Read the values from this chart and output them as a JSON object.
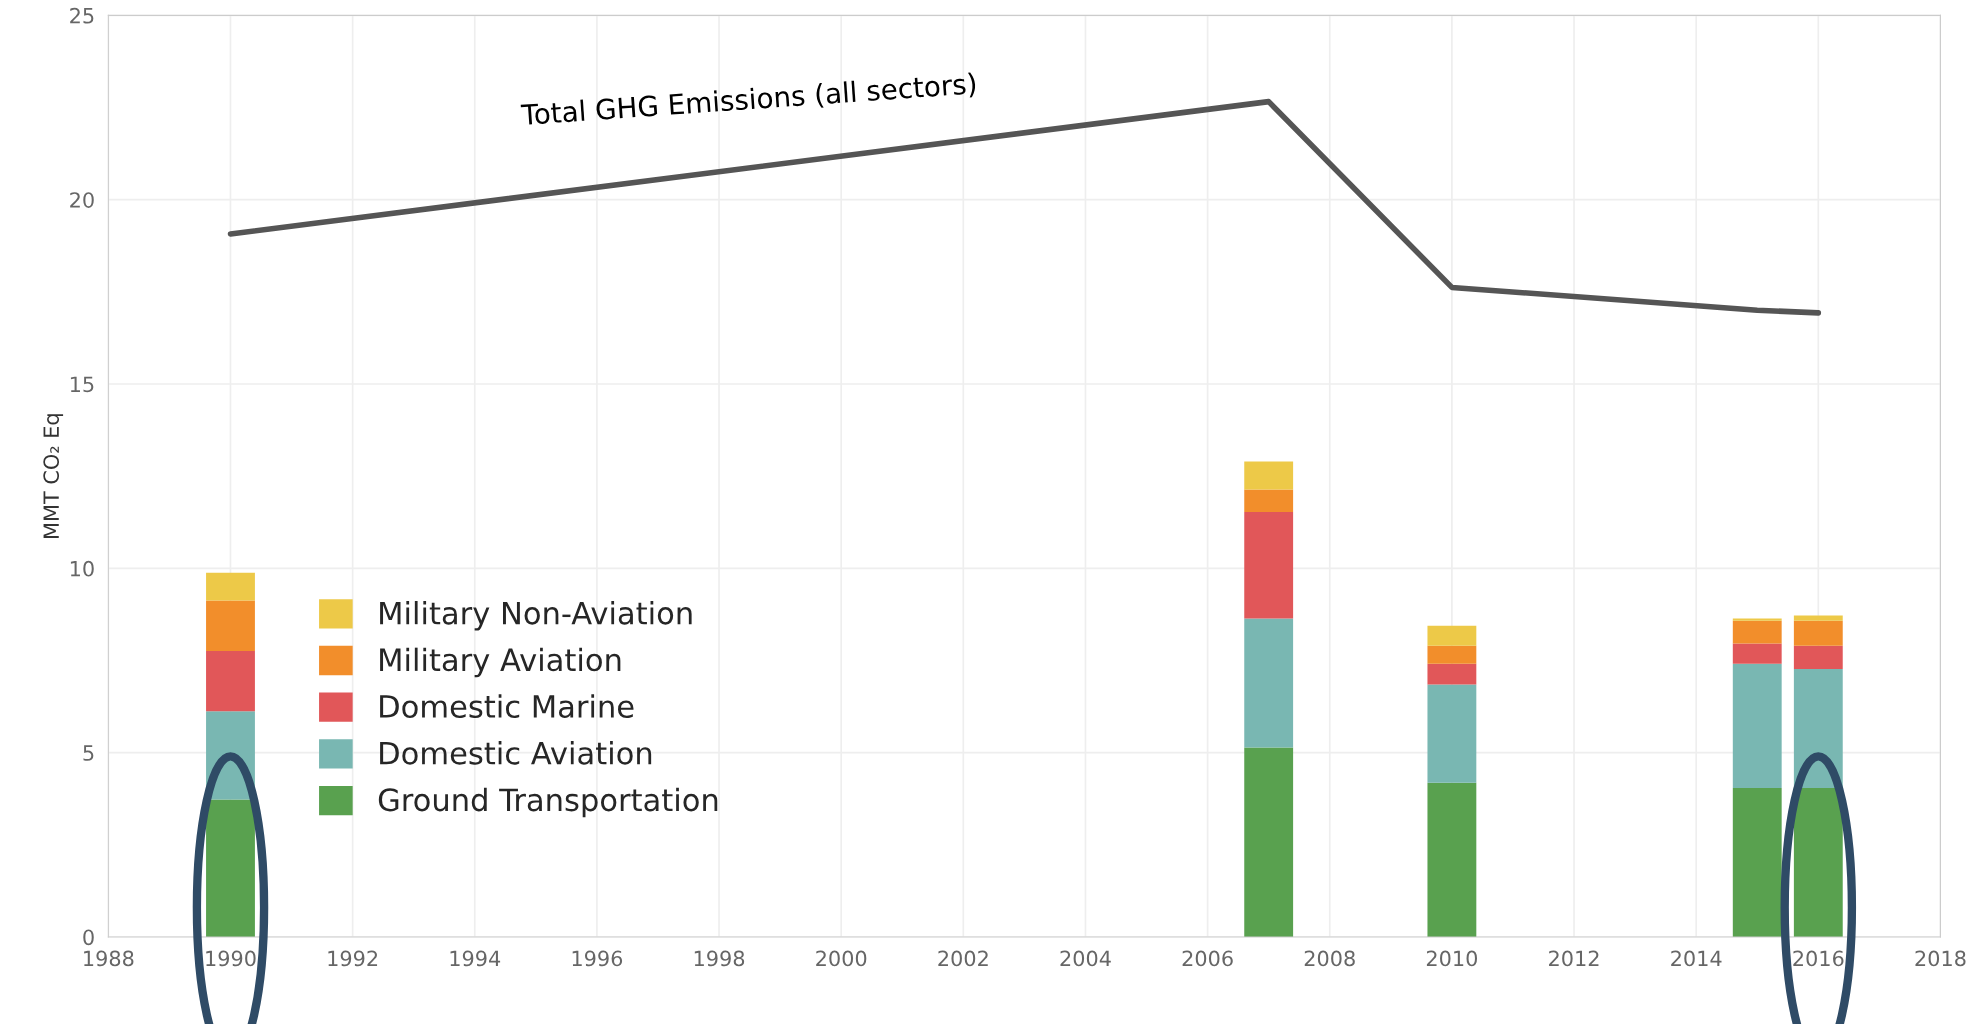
{
  "chart_data": {
    "type": "bar",
    "stacked": true,
    "ylabel": "MMT CO₂ Eq",
    "x": [
      1990,
      2007,
      2010,
      2015,
      2016
    ],
    "series": [
      {
        "name": "Ground Transportation",
        "color": "#59a14f",
        "values": [
          3.73,
          5.14,
          4.18,
          4.04,
          4.04
        ]
      },
      {
        "name": "Domestic Aviation",
        "color": "#79b7b2",
        "values": [
          2.39,
          3.5,
          2.67,
          3.37,
          3.23
        ]
      },
      {
        "name": "Domestic Marine",
        "color": "#e15759",
        "values": [
          1.64,
          2.89,
          0.56,
          0.55,
          0.63
        ]
      },
      {
        "name": "Military Aviation",
        "color": "#f28e2b",
        "values": [
          1.37,
          0.61,
          0.49,
          0.62,
          0.68
        ]
      },
      {
        "name": "Military Non-Aviation",
        "color": "#edc948",
        "values": [
          0.75,
          0.76,
          0.54,
          0.06,
          0.14
        ]
      },
      {
        "name": "Total GHG Emissions (all sectors)",
        "type": "line",
        "color": "#555555",
        "values": [
          19.07,
          22.66,
          17.62,
          17.0,
          16.93
        ]
      }
    ],
    "xlim": [
      1988,
      2018
    ],
    "xticks": [
      1988,
      1990,
      1992,
      1994,
      1996,
      1998,
      2000,
      2002,
      2004,
      2006,
      2008,
      2010,
      2012,
      2014,
      2016,
      2018
    ],
    "ylim": [
      0,
      25
    ],
    "yticks": [
      0,
      5,
      10,
      15,
      20,
      25
    ],
    "grid": true,
    "legend": "bottom left"
  }
}
